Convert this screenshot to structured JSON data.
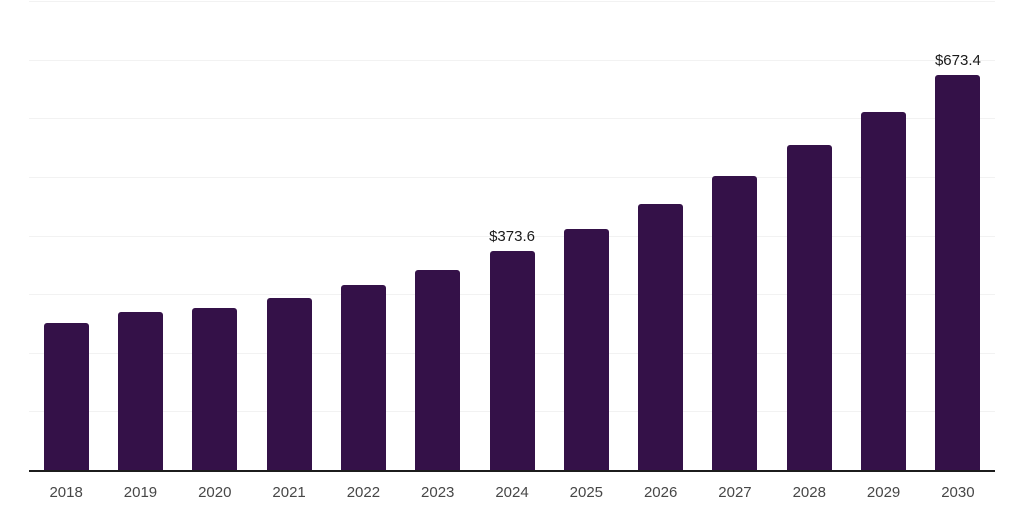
{
  "chart_data": {
    "type": "bar",
    "title": "",
    "xlabel": "",
    "ylabel": "",
    "categories": [
      "2018",
      "2019",
      "2020",
      "2021",
      "2022",
      "2023",
      "2024",
      "2025",
      "2026",
      "2027",
      "2028",
      "2029",
      "2030"
    ],
    "values": [
      251.5,
      270.0,
      276.3,
      294.0,
      315.5,
      341.0,
      373.6,
      410.5,
      454.5,
      502.0,
      554.5,
      610.5,
      673.4
    ],
    "point_labels": [
      "",
      "",
      "",
      "",
      "",
      "",
      "$373.6",
      "",
      "",
      "",
      "",
      "",
      "$673.4"
    ],
    "ylim": [
      0,
      800
    ],
    "gridline_step": 100,
    "grid": true,
    "legend_position": "none",
    "currency_prefix": "$"
  },
  "colors": {
    "bar": "#341148",
    "gridline": "#f2f2f2",
    "axis": "#1c1c1c",
    "tick_label": "#474747",
    "data_label": "#1a1a1a",
    "background": "#ffffff"
  }
}
